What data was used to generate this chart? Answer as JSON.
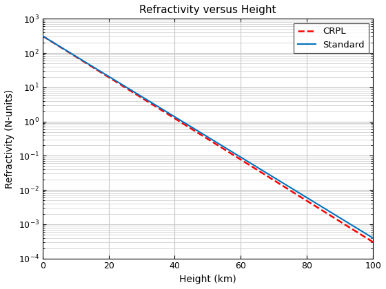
{
  "title": "Refractivity versus Height",
  "xlabel": "Height (km)",
  "ylabel": "Refractivity (N-units)",
  "xlim": [
    0,
    100
  ],
  "ylim": [
    0.0001,
    1000.0
  ],
  "standard_N0": 315.0,
  "standard_c": 0.1359,
  "crpl_N0": 315.0,
  "crpl_c": 0.1386,
  "standard_color": "#0072BD",
  "crpl_color": "#FF0000",
  "standard_linewidth": 1.5,
  "crpl_linewidth": 1.8,
  "grid_color": "#c8c8c8",
  "background_color": "#ffffff",
  "legend_labels": [
    "Standard",
    "CRPL"
  ],
  "title_fontsize": 11,
  "label_fontsize": 10,
  "num_points": 500
}
